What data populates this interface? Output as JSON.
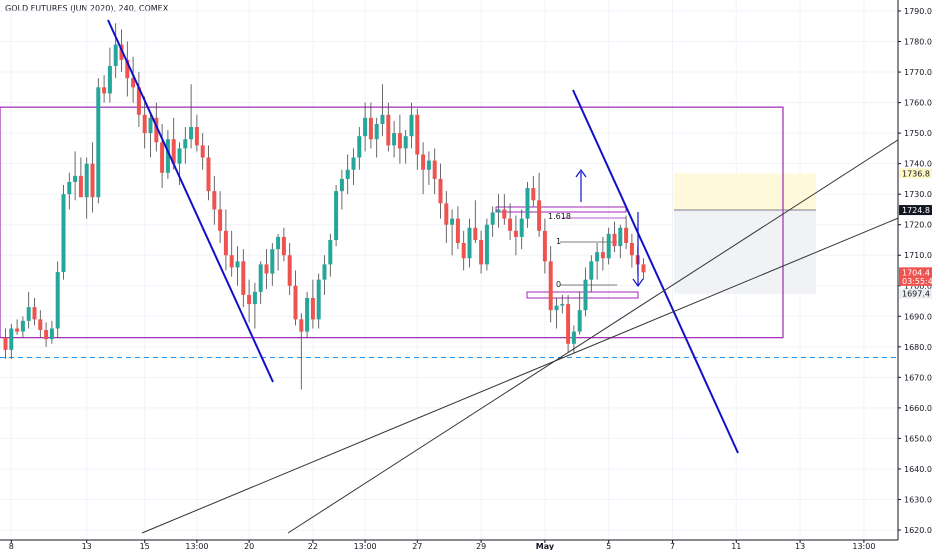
{
  "header": {
    "title": "GOLD FUTURES (JUN 2020), 240, COMEX"
  },
  "chart_data": {
    "type": "candlestick",
    "title": "GOLD FUTURES (JUN 2020), 240, COMEX",
    "ylim": [
      1619,
      1793
    ],
    "y_ticks": [
      1620,
      1630,
      1640,
      1650,
      1660,
      1670,
      1680,
      1690,
      1700,
      1710,
      1720,
      1730,
      1740,
      1750,
      1760,
      1770,
      1780,
      1790
    ],
    "x_labels": [
      "8",
      "13",
      "15",
      "13:00",
      "20",
      "22",
      "13:00",
      "27",
      "29",
      "May",
      "5",
      "7",
      "11",
      "13",
      "13:00"
    ],
    "x_label_candle_index": [
      1,
      14,
      24,
      33,
      42,
      53,
      62,
      71,
      82,
      93,
      104,
      115,
      126,
      137,
      148
    ],
    "price_badges": [
      {
        "label": "1736.8",
        "value": 1736.8,
        "bg": "#fff8c4",
        "fg": "#131722"
      },
      {
        "label": "1724.8",
        "value": 1724.8,
        "bg": "#131722",
        "fg": "#ffffff"
      },
      {
        "label": "1704.4",
        "value": 1704.4,
        "bg": "#ef5350",
        "fg": "#ffffff"
      },
      {
        "label": "03:55:48",
        "value": 1701.6,
        "bg": "#ef5350",
        "fg": "#ffffff"
      },
      {
        "label": "1697.4",
        "value": 1697.4,
        "bg": "#eceff1",
        "fg": "#131722"
      }
    ],
    "annotations": {
      "fib_label": "1.618",
      "level_one_label": "1",
      "level_zero_label": "0",
      "range_box": {
        "top": 1758.5,
        "bottom": 1683,
        "color": "#9c27b0"
      },
      "dashed_support": 1676.5,
      "position_target_zone": [
        1724.8,
        1736.8
      ],
      "position_stop_zone": [
        1697.4,
        1724.8
      ]
    },
    "colors": {
      "up": "#26a69a",
      "down": "#ef5350",
      "grid": "#f0f3fa",
      "trendline_blue": "#1010c8",
      "trendline_black": "#333333",
      "box": "#9c27b0"
    },
    "candles": [
      [
        1683.0,
        1686.0,
        1676.0,
        1679.0
      ],
      [
        1679.0,
        1687.5,
        1676.0,
        1686.0
      ],
      [
        1686.0,
        1689.0,
        1684.0,
        1685.0
      ],
      [
        1685.0,
        1690.0,
        1683.0,
        1688.5
      ],
      [
        1688.5,
        1698.0,
        1686.0,
        1693.0
      ],
      [
        1693.0,
        1696.0,
        1687.0,
        1689.0
      ],
      [
        1689.0,
        1692.0,
        1683.0,
        1685.5
      ],
      [
        1685.5,
        1688.0,
        1680.0,
        1682.5
      ],
      [
        1682.5,
        1688.5,
        1681.0,
        1686.0
      ],
      [
        1686.0,
        1708.0,
        1683.0,
        1704.5
      ],
      [
        1704.5,
        1733.0,
        1702.0,
        1730.0
      ],
      [
        1730.0,
        1737.0,
        1725.0,
        1734.0
      ],
      [
        1734.0,
        1744.0,
        1728.0,
        1736.0
      ],
      [
        1736.0,
        1742.0,
        1730.0,
        1729.0
      ],
      [
        1729.0,
        1742.0,
        1722.0,
        1740.0
      ],
      [
        1740.0,
        1747.0,
        1724.0,
        1729.0
      ],
      [
        1729.0,
        1768.0,
        1727.0,
        1765.0
      ],
      [
        1765.0,
        1769.0,
        1760.0,
        1763.0
      ],
      [
        1763.0,
        1778.0,
        1760.0,
        1772.0
      ],
      [
        1772.0,
        1786.0,
        1768.0,
        1779.0
      ],
      [
        1779.0,
        1784.0,
        1770.0,
        1774.0
      ],
      [
        1774.0,
        1780.0,
        1762.0,
        1768.0
      ],
      [
        1768.0,
        1775.0,
        1760.0,
        1765.0
      ],
      [
        1765.0,
        1770.0,
        1752.0,
        1756.0
      ],
      [
        1756.0,
        1762.0,
        1745.0,
        1750.0
      ],
      [
        1750.0,
        1757.0,
        1742.0,
        1755.0
      ],
      [
        1755.0,
        1760.0,
        1744.0,
        1747.0
      ],
      [
        1747.0,
        1753.0,
        1732.0,
        1737.0
      ],
      [
        1737.0,
        1751.0,
        1735.0,
        1748.0
      ],
      [
        1748.0,
        1755.0,
        1738.0,
        1740.0
      ],
      [
        1740.0,
        1747.0,
        1733.0,
        1745.0
      ],
      [
        1745.0,
        1752.0,
        1740.0,
        1748.0
      ],
      [
        1748.0,
        1766.0,
        1745.0,
        1752.0
      ],
      [
        1752.0,
        1756.0,
        1744.0,
        1746.0
      ],
      [
        1746.0,
        1750.0,
        1738.0,
        1742.0
      ],
      [
        1742.0,
        1746.0,
        1728.0,
        1731.0
      ],
      [
        1731.0,
        1736.0,
        1720.0,
        1725.0
      ],
      [
        1725.0,
        1731.0,
        1714.0,
        1718.0
      ],
      [
        1718.0,
        1725.0,
        1705.0,
        1710.0
      ],
      [
        1710.0,
        1718.0,
        1703.0,
        1706.0
      ],
      [
        1706.0,
        1713.0,
        1700.0,
        1708.0
      ],
      [
        1708.0,
        1712.0,
        1693.0,
        1697.0
      ],
      [
        1697.0,
        1702.0,
        1688.0,
        1694.0
      ],
      [
        1694.0,
        1701.0,
        1686.0,
        1698.0
      ],
      [
        1698.0,
        1708.0,
        1694.0,
        1707.0
      ],
      [
        1707.0,
        1712.0,
        1699.0,
        1704.0
      ],
      [
        1704.0,
        1714.0,
        1700.0,
        1712.0
      ],
      [
        1712.0,
        1717.0,
        1705.0,
        1716.0
      ],
      [
        1716.0,
        1719.0,
        1708.0,
        1710.0
      ],
      [
        1710.0,
        1714.0,
        1697.0,
        1700.0
      ],
      [
        1700.0,
        1705.0,
        1687.0,
        1689.0
      ],
      [
        1689.0,
        1691.0,
        1666.0,
        1685.0
      ],
      [
        1685.0,
        1698.0,
        1683.0,
        1696.0
      ],
      [
        1696.0,
        1702.0,
        1686.0,
        1689.0
      ],
      [
        1689.0,
        1704.0,
        1686.0,
        1702.0
      ],
      [
        1702.0,
        1710.0,
        1697.0,
        1707.0
      ],
      [
        1707.0,
        1717.0,
        1703.0,
        1715.0
      ],
      [
        1715.0,
        1733.0,
        1713.0,
        1731.0
      ],
      [
        1731.0,
        1738.0,
        1725.0,
        1735.0
      ],
      [
        1735.0,
        1743.0,
        1730.0,
        1738.0
      ],
      [
        1738.0,
        1745.0,
        1733.0,
        1742.0
      ],
      [
        1742.0,
        1752.0,
        1738.0,
        1749.0
      ],
      [
        1749.0,
        1760.0,
        1744.0,
        1755.0
      ],
      [
        1755.0,
        1760.0,
        1745.0,
        1748.0
      ],
      [
        1748.0,
        1755.0,
        1742.0,
        1753.0
      ],
      [
        1753.0,
        1766.0,
        1749.0,
        1756.0
      ],
      [
        1756.0,
        1760.0,
        1744.0,
        1746.0
      ],
      [
        1746.0,
        1754.0,
        1742.0,
        1750.0
      ],
      [
        1750.0,
        1756.0,
        1740.0,
        1745.0
      ],
      [
        1745.0,
        1751.0,
        1740.0,
        1749.0
      ],
      [
        1749.0,
        1760.0,
        1745.0,
        1756.0
      ],
      [
        1756.0,
        1758.0,
        1738.0,
        1743.0
      ],
      [
        1743.0,
        1747.0,
        1730.0,
        1738.0
      ],
      [
        1738.0,
        1744.0,
        1733.0,
        1741.0
      ],
      [
        1741.0,
        1745.0,
        1730.0,
        1735.0
      ],
      [
        1735.0,
        1740.0,
        1722.0,
        1727.0
      ],
      [
        1727.0,
        1731.0,
        1714.0,
        1720.0
      ],
      [
        1720.0,
        1725.0,
        1710.0,
        1722.0
      ],
      [
        1722.0,
        1726.0,
        1712.0,
        1714.0
      ],
      [
        1714.0,
        1718.0,
        1705.0,
        1709.0
      ],
      [
        1709.0,
        1722.0,
        1706.0,
        1719.0
      ],
      [
        1719.0,
        1728.0,
        1714.0,
        1715.0
      ],
      [
        1715.0,
        1718.0,
        1704.0,
        1707.0
      ],
      [
        1707.0,
        1722.0,
        1705.0,
        1720.0
      ],
      [
        1720.0,
        1726.0,
        1716.0,
        1724.0
      ],
      [
        1724.0,
        1730.0,
        1719.0,
        1725.0
      ],
      [
        1725.0,
        1730.0,
        1720.0,
        1722.0
      ],
      [
        1722.0,
        1727.0,
        1715.0,
        1718.0
      ],
      [
        1718.0,
        1723.0,
        1710.0,
        1716.0
      ],
      [
        1716.0,
        1725.0,
        1712.0,
        1722.0
      ],
      [
        1722.0,
        1734.0,
        1719.0,
        1732.0
      ],
      [
        1732.0,
        1736.0,
        1726.0,
        1728.0
      ],
      [
        1728.0,
        1737.0,
        1716.0,
        1718.0
      ],
      [
        1718.0,
        1722.0,
        1704.0,
        1708.0
      ],
      [
        1708.0,
        1713.0,
        1688.0,
        1692.0
      ],
      [
        1692.0,
        1696.0,
        1686.0,
        1693.5
      ],
      [
        1693.5,
        1697.0,
        1691.0,
        1694.0
      ],
      [
        1694.0,
        1697.0,
        1678.0,
        1681.0
      ],
      [
        1681.0,
        1687.0,
        1678.0,
        1685.0
      ],
      [
        1685.0,
        1698.0,
        1684.0,
        1692.0
      ],
      [
        1692.0,
        1706.0,
        1690.0,
        1702.0
      ],
      [
        1702.0,
        1710.0,
        1698.0,
        1708.0
      ],
      [
        1708.0,
        1714.0,
        1702.0,
        1711.0
      ],
      [
        1711.0,
        1716.0,
        1705.0,
        1709.0
      ],
      [
        1709.0,
        1719.0,
        1707.0,
        1717.0
      ],
      [
        1717.0,
        1721.0,
        1711.0,
        1713.0
      ],
      [
        1713.0,
        1720.0,
        1709.0,
        1719.0
      ],
      [
        1719.0,
        1723.0,
        1712.0,
        1714.0
      ],
      [
        1714.0,
        1717.0,
        1706.0,
        1710.0
      ],
      [
        1710.0,
        1713.0,
        1704.0,
        1707.0
      ],
      [
        1707.0,
        1709.0,
        1702.0,
        1704.4
      ]
    ]
  }
}
